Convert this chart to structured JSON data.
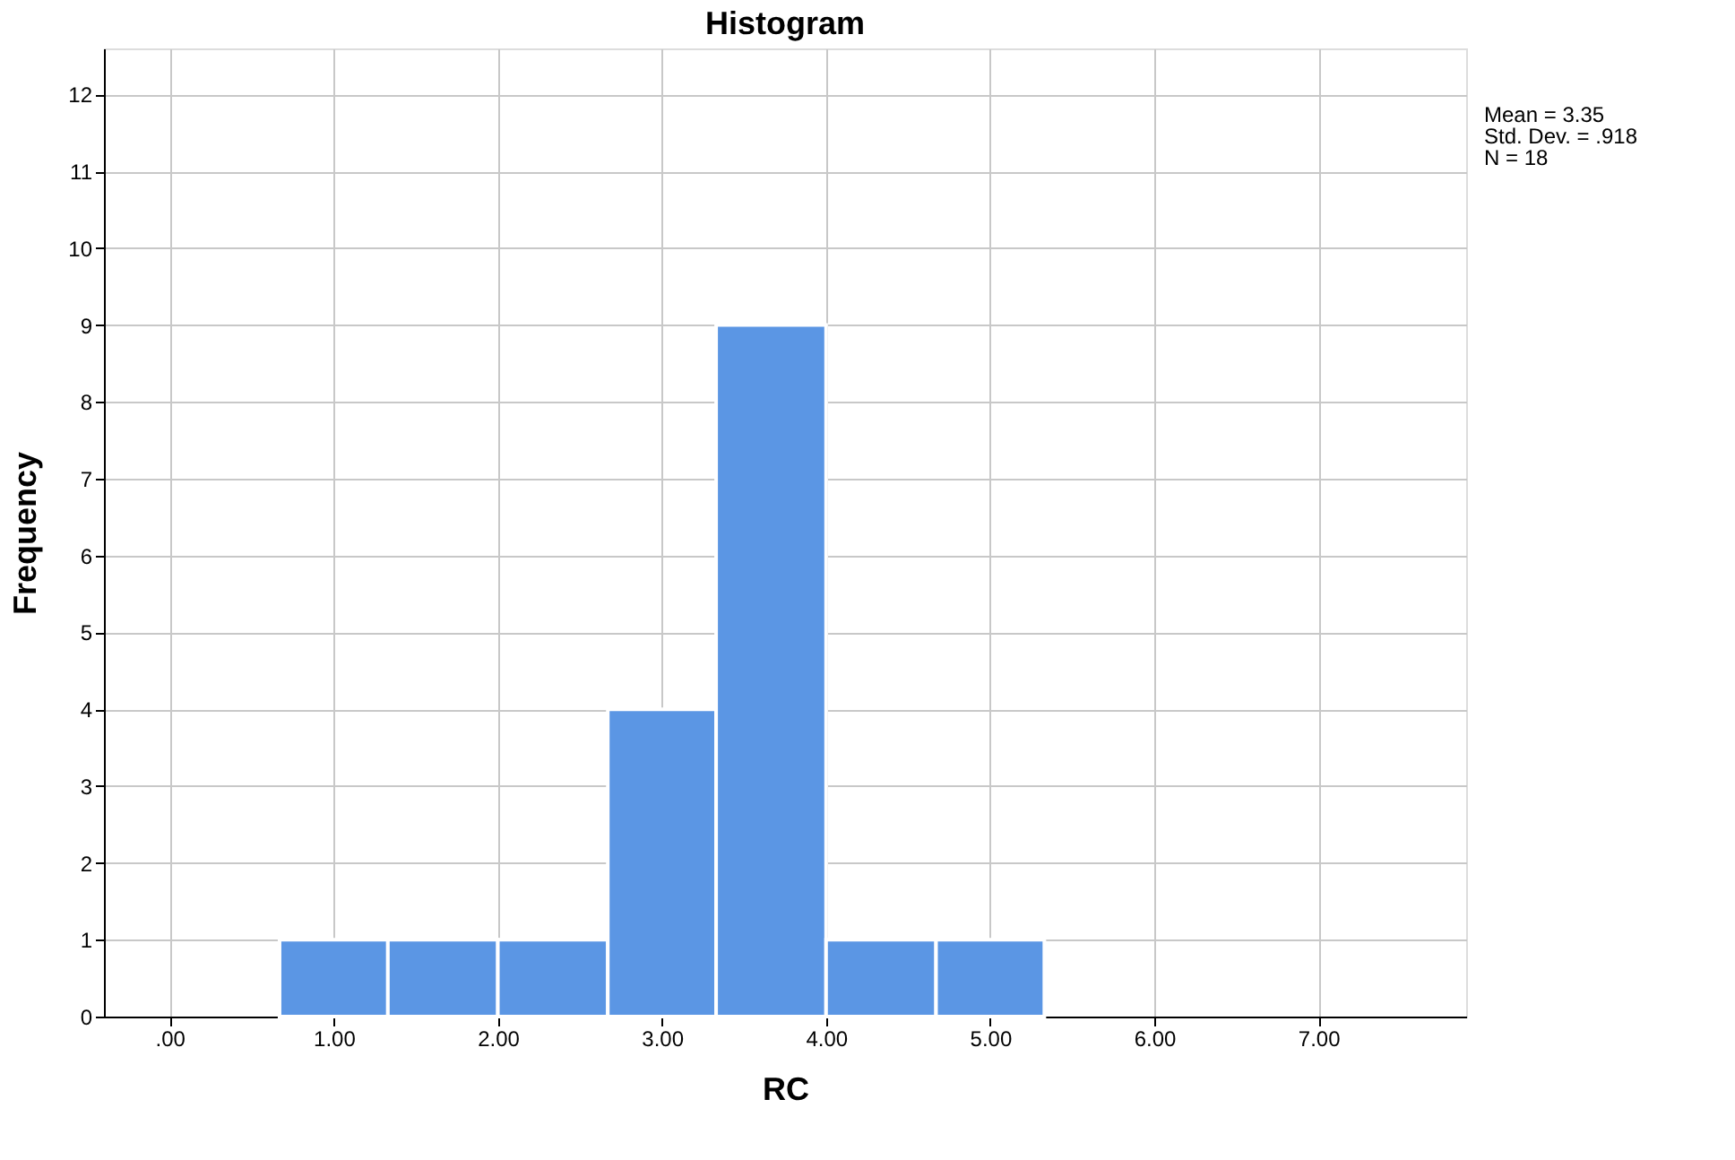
{
  "chart_data": {
    "type": "histogram",
    "title": "Histogram",
    "xlabel": "RC",
    "ylabel": "Frequency",
    "bins": [
      0.67,
      1.33,
      2,
      2.67,
      3.33,
      4,
      4.67,
      5.33
    ],
    "values": [
      1,
      1,
      1,
      4,
      9,
      1,
      1
    ],
    "color": "#5b96e4",
    "xlim": [
      -0.4,
      7.9
    ],
    "ylim": [
      0,
      12.6
    ],
    "xticks": [
      {
        "value": 0,
        "label": ".00"
      },
      {
        "value": 1,
        "label": "1.00"
      },
      {
        "value": 2,
        "label": "2.00"
      },
      {
        "value": 3,
        "label": "3.00"
      },
      {
        "value": 4,
        "label": "4.00"
      },
      {
        "value": 5,
        "label": "5.00"
      },
      {
        "value": 6,
        "label": "6.00"
      },
      {
        "value": 7,
        "label": "7.00"
      }
    ],
    "yticks": [
      0,
      1,
      2,
      3,
      4,
      5,
      6,
      7,
      8,
      9,
      10,
      11,
      12
    ],
    "grid": true,
    "annotations": [
      "Mean = 3.35",
      "Std. Dev. = .918",
      "N = 18"
    ]
  }
}
